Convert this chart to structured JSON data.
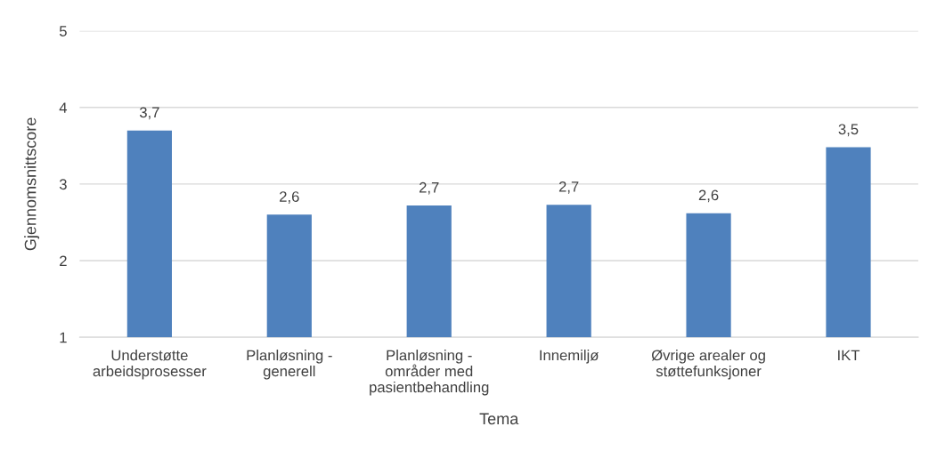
{
  "chart_data": {
    "type": "bar",
    "xlabel": "Tema",
    "ylabel": "Gjennomsnittscore",
    "categories": [
      "Understøtte\narbeidsprosesser",
      "Planløsning -\ngenerell",
      "Planløsning -\nområder med\npasientbehandling",
      "Innemiljø",
      "Øvrige arealer og\nstøttefunksjoner",
      "IKT"
    ],
    "values": [
      3.7,
      2.6,
      2.72,
      2.73,
      2.62,
      3.48
    ],
    "value_labels": [
      "3,7",
      "2,6",
      "2,7",
      "2,7",
      "2,6",
      "3,5"
    ],
    "color": "#4f81bd",
    "ylim": [
      1,
      5
    ],
    "yticks": [
      1,
      2,
      3,
      4,
      5
    ],
    "grid": "y",
    "legend": false
  }
}
